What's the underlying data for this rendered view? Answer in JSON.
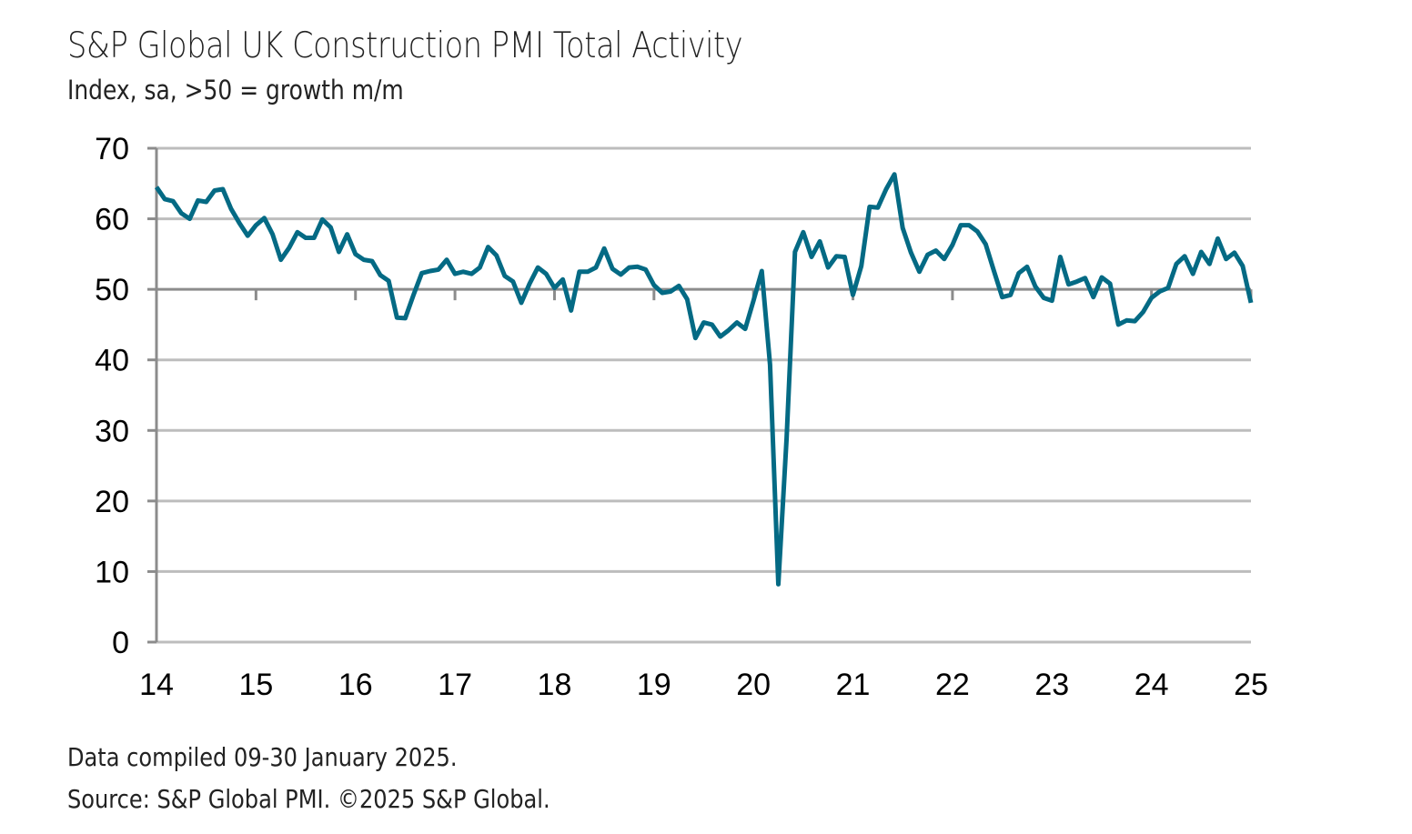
{
  "header": {
    "title": "S&P Global UK Construction PMI Total Activity",
    "subtitle": "Index, sa, >50 = growth m/m"
  },
  "footer": {
    "compiled": "Data compiled 09-30 January 2025.",
    "source": "Source: S&P Global PMI. ©2025 S&P Global."
  },
  "colors": {
    "line": "#046a84",
    "grid": "#bdbdbd",
    "axis": "#8c8c8c"
  },
  "chart_data": {
    "type": "line",
    "title": "S&P Global UK Construction PMI Total Activity",
    "subtitle": "Index, sa, >50 = growth m/m",
    "xlabel": "",
    "ylabel": "",
    "ylim": [
      0,
      70
    ],
    "yticks": [
      0,
      10,
      20,
      30,
      40,
      50,
      60,
      70
    ],
    "xticks": [
      "14",
      "15",
      "16",
      "17",
      "18",
      "19",
      "20",
      "21",
      "22",
      "23",
      "24",
      "25"
    ],
    "xlim": [
      2014.0,
      2025.0
    ],
    "grid": true,
    "reference_line": 50,
    "legend": "none",
    "frequency": "monthly",
    "start": "2014-01",
    "series": [
      {
        "name": "UK Construction PMI Total Activity",
        "values": [
          64.5,
          62.8,
          62.5,
          60.8,
          60.0,
          62.6,
          62.4,
          64.0,
          64.2,
          61.4,
          59.4,
          57.6,
          59.1,
          60.1,
          57.8,
          54.2,
          55.9,
          58.1,
          57.3,
          57.3,
          59.9,
          58.8,
          55.3,
          57.8,
          55.0,
          54.2,
          54.0,
          52.0,
          51.2,
          46.0,
          45.9,
          49.2,
          52.3,
          52.6,
          52.8,
          54.2,
          52.2,
          52.5,
          52.2,
          53.1,
          56.0,
          54.8,
          51.9,
          51.1,
          48.1,
          50.8,
          53.1,
          52.2,
          50.2,
          51.4,
          47.0,
          52.5,
          52.5,
          53.1,
          55.8,
          52.9,
          52.1,
          53.1,
          53.2,
          52.8,
          50.6,
          49.5,
          49.7,
          50.5,
          48.6,
          43.1,
          45.3,
          45.0,
          43.3,
          44.2,
          45.3,
          44.4,
          48.4,
          52.6,
          39.3,
          8.2,
          28.9,
          55.3,
          58.1,
          54.6,
          56.8,
          53.1,
          54.7,
          54.6,
          49.2,
          53.3,
          61.7,
          61.6,
          64.2,
          66.3,
          58.7,
          55.2,
          52.5,
          54.9,
          55.5,
          54.3,
          56.3,
          59.1,
          59.1,
          58.2,
          56.4,
          52.6,
          48.9,
          49.2,
          52.3,
          53.2,
          50.4,
          48.8,
          48.4,
          54.6,
          50.7,
          51.1,
          51.6,
          48.9,
          51.7,
          50.8,
          45.0,
          45.6,
          45.5,
          46.8,
          48.8,
          49.7,
          50.2,
          53.6,
          54.7,
          52.2,
          55.3,
          53.6,
          57.2,
          54.3,
          55.2,
          53.3,
          48.1
        ]
      }
    ]
  }
}
